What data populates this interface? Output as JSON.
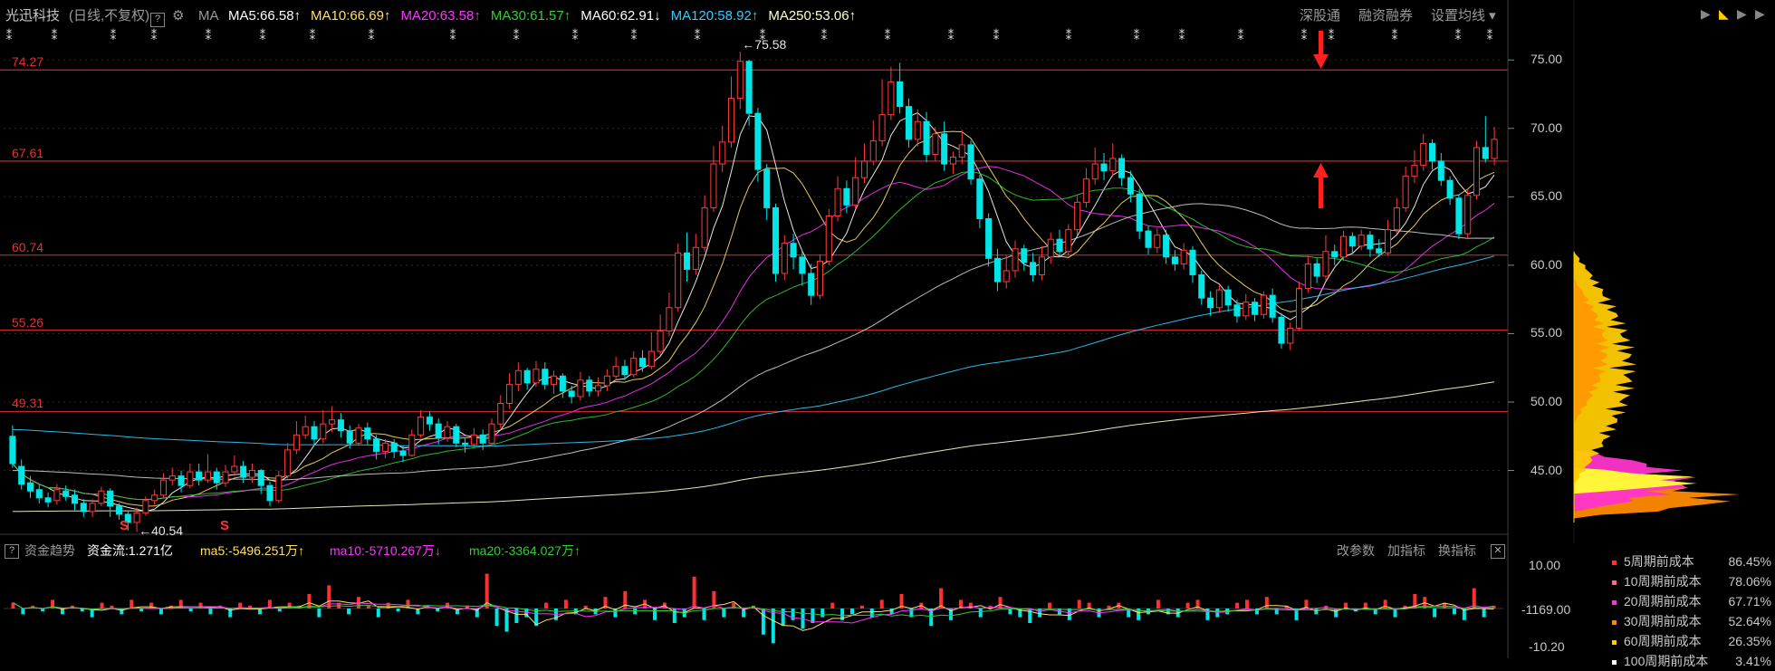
{
  "header": {
    "stock_name": "光迅科技",
    "period": "(日线,不复权)",
    "help": "?",
    "ma_label": "MA",
    "ma": [
      {
        "text": "MA5:66.58",
        "arrow": "↑",
        "color": "#ffffff"
      },
      {
        "text": "MA10:66.69",
        "arrow": "↑",
        "color": "#ffe066"
      },
      {
        "text": "MA20:63.58",
        "arrow": "↑",
        "color": "#ff33ff"
      },
      {
        "text": "MA30:61.57",
        "arrow": "↑",
        "color": "#33cc33"
      },
      {
        "text": "MA60:62.91",
        "arrow": "↓",
        "color": "#ffffff"
      },
      {
        "text": "MA120:58.92",
        "arrow": "↑",
        "color": "#33ccff"
      },
      {
        "text": "MA250:53.06",
        "arrow": "↑",
        "color": "#ffffcc"
      }
    ],
    "right_buttons": [
      "深股通",
      "融资融券",
      "设置均线"
    ]
  },
  "price_levels": [
    "74.27",
    "67.61",
    "60.74",
    "55.26",
    "49.31"
  ],
  "price_axis": [
    "75.00",
    "70.00",
    "65.00",
    "60.00",
    "55.00",
    "50.00",
    "45.00"
  ],
  "annotations": {
    "high": "←75.58",
    "low": "←40.54",
    "s_marker": "S"
  },
  "flow": {
    "title": "资金趋势",
    "help": "?",
    "main": "资金流:1.271亿",
    "ma5": "ma5:-5496.251万",
    "ma5_arrow": "↑",
    "ma10": "ma10:-5710.267万",
    "ma10_arrow": "↓",
    "ma20": "ma20:-3364.027万",
    "ma20_arrow": "↑",
    "buttons": [
      "改参数",
      "加指标",
      "换指标"
    ],
    "close": "✕",
    "axis": [
      "10.00",
      "-1169.00",
      "-10.20"
    ]
  },
  "cost_legend": [
    {
      "label": "5周期前成本",
      "pct": "86.45%",
      "color": "#ff3333"
    },
    {
      "label": "10周期前成本",
      "pct": "78.06%",
      "color": "#ff6688"
    },
    {
      "label": "20周期前成本",
      "pct": "67.71%",
      "color": "#ff33cc"
    },
    {
      "label": "30周期前成本",
      "pct": "52.64%",
      "color": "#ff8800"
    },
    {
      "label": "60周期前成本",
      "pct": "26.35%",
      "color": "#ffcc00"
    },
    {
      "label": "100周期前成本",
      "pct": "3.41%",
      "color": "#ffffff"
    }
  ],
  "chart_data": {
    "type": "candlestick",
    "y_range": [
      41,
      77
    ],
    "candles_ohlc": [
      [
        47.5,
        45.5,
        48.3,
        45.2
      ],
      [
        45.3,
        44.0,
        45.8,
        43.6
      ],
      [
        44.1,
        43.5,
        44.6,
        43.0
      ],
      [
        43.6,
        43.0,
        44.0,
        42.6
      ],
      [
        43.0,
        42.7,
        43.4,
        42.3
      ],
      [
        42.8,
        43.6,
        44.0,
        42.5
      ],
      [
        43.5,
        43.1,
        43.9,
        42.8
      ],
      [
        43.2,
        42.6,
        43.6,
        42.1
      ],
      [
        42.6,
        42.0,
        42.9,
        41.6
      ],
      [
        42.0,
        42.6,
        42.9,
        41.6
      ],
      [
        42.6,
        43.5,
        43.8,
        42.4
      ],
      [
        43.5,
        42.4,
        43.7,
        41.6
      ],
      [
        42.4,
        41.8,
        42.6,
        41.4
      ],
      [
        41.8,
        41.2,
        42.1,
        40.6
      ],
      [
        41.2,
        41.9,
        42.3,
        40.5
      ],
      [
        41.9,
        42.8,
        43.1,
        41.7
      ],
      [
        42.8,
        43.2,
        43.6,
        42.5
      ],
      [
        43.2,
        44.3,
        44.8,
        43.0
      ],
      [
        44.3,
        44.6,
        45.2,
        43.9
      ],
      [
        44.6,
        43.9,
        45.0,
        43.4
      ],
      [
        43.9,
        44.9,
        45.5,
        43.7
      ],
      [
        44.9,
        44.3,
        45.5,
        43.9
      ],
      [
        44.3,
        44.9,
        46.2,
        44.1
      ],
      [
        44.9,
        44.1,
        45.2,
        43.6
      ],
      [
        44.1,
        44.9,
        45.4,
        43.8
      ],
      [
        44.9,
        45.3,
        46.1,
        44.6
      ],
      [
        45.3,
        44.5,
        45.7,
        44.1
      ],
      [
        44.5,
        45.0,
        45.5,
        44.1
      ],
      [
        45.0,
        43.9,
        45.1,
        43.3
      ],
      [
        43.9,
        42.8,
        44.2,
        42.4
      ],
      [
        42.8,
        44.6,
        45.0,
        42.6
      ],
      [
        44.6,
        46.5,
        47.0,
        44.4
      ],
      [
        46.5,
        47.6,
        48.6,
        46.2
      ],
      [
        47.6,
        48.2,
        49.0,
        47.3
      ],
      [
        48.2,
        47.3,
        48.6,
        46.8
      ],
      [
        47.3,
        48.4,
        49.4,
        47.0
      ],
      [
        48.4,
        48.7,
        49.7,
        47.8
      ],
      [
        48.7,
        47.9,
        49.2,
        47.4
      ],
      [
        47.9,
        47.0,
        48.3,
        46.6
      ],
      [
        47.0,
        48.1,
        48.4,
        46.8
      ],
      [
        48.1,
        47.3,
        48.5,
        46.9
      ],
      [
        47.3,
        46.4,
        47.6,
        45.8
      ],
      [
        46.4,
        47.0,
        47.3,
        45.9
      ],
      [
        47.0,
        46.4,
        47.3,
        45.9
      ],
      [
        46.4,
        46.1,
        46.8,
        45.6
      ],
      [
        46.1,
        47.6,
        48.0,
        46.0
      ],
      [
        47.6,
        48.9,
        49.4,
        47.4
      ],
      [
        48.9,
        48.4,
        49.3,
        47.9
      ],
      [
        48.4,
        47.4,
        48.8,
        46.9
      ],
      [
        47.4,
        48.2,
        48.6,
        47.1
      ],
      [
        48.2,
        47.0,
        48.4,
        46.7
      ],
      [
        47.0,
        46.9,
        47.4,
        46.3
      ],
      [
        46.9,
        47.6,
        48.1,
        46.6
      ],
      [
        47.6,
        47.0,
        48.0,
        46.5
      ],
      [
        47.0,
        48.4,
        48.8,
        46.8
      ],
      [
        48.4,
        49.9,
        50.5,
        48.1
      ],
      [
        49.9,
        51.3,
        52.1,
        49.5
      ],
      [
        51.3,
        52.3,
        52.9,
        50.8
      ],
      [
        52.3,
        51.4,
        52.5,
        50.9
      ],
      [
        51.4,
        52.4,
        53.0,
        51.1
      ],
      [
        52.4,
        51.3,
        52.9,
        50.9
      ],
      [
        51.3,
        51.9,
        52.3,
        50.6
      ],
      [
        51.9,
        50.8,
        52.1,
        50.3
      ],
      [
        50.8,
        50.4,
        51.2,
        49.9
      ],
      [
        50.4,
        51.6,
        52.2,
        50.1
      ],
      [
        51.6,
        50.8,
        51.9,
        50.4
      ],
      [
        50.8,
        51.2,
        51.8,
        50.4
      ],
      [
        51.2,
        51.9,
        52.4,
        50.8
      ],
      [
        51.9,
        52.6,
        53.3,
        51.6
      ],
      [
        52.6,
        52.0,
        53.1,
        51.6
      ],
      [
        52.0,
        53.2,
        53.7,
        51.8
      ],
      [
        53.2,
        52.6,
        53.8,
        52.2
      ],
      [
        52.6,
        53.7,
        55.1,
        52.4
      ],
      [
        53.7,
        55.2,
        56.4,
        53.4
      ],
      [
        55.2,
        56.9,
        58.0,
        54.8
      ],
      [
        56.9,
        60.9,
        61.6,
        56.6
      ],
      [
        60.9,
        59.7,
        62.4,
        58.8
      ],
      [
        59.7,
        61.3,
        62.3,
        59.3
      ],
      [
        61.3,
        64.2,
        65.1,
        61.0
      ],
      [
        64.2,
        67.4,
        68.7,
        63.9
      ],
      [
        67.4,
        69.0,
        70.2,
        66.8
      ],
      [
        69.0,
        72.2,
        73.8,
        68.6
      ],
      [
        72.2,
        74.9,
        75.6,
        71.4
      ],
      [
        74.9,
        71.1,
        75.0,
        70.2
      ],
      [
        71.1,
        67.0,
        71.5,
        66.1
      ],
      [
        67.0,
        64.2,
        67.4,
        63.3
      ],
      [
        64.2,
        59.4,
        64.5,
        58.8
      ],
      [
        59.4,
        61.6,
        62.2,
        58.9
      ],
      [
        61.6,
        60.6,
        62.3,
        59.7
      ],
      [
        60.6,
        59.4,
        61.0,
        58.5
      ],
      [
        59.4,
        57.8,
        60.1,
        57.1
      ],
      [
        57.8,
        60.3,
        60.8,
        57.5
      ],
      [
        60.3,
        63.6,
        64.1,
        60.0
      ],
      [
        63.6,
        65.6,
        66.5,
        63.2
      ],
      [
        65.6,
        64.4,
        66.2,
        63.8
      ],
      [
        64.4,
        66.4,
        67.9,
        64.1
      ],
      [
        66.4,
        67.6,
        68.9,
        66.0
      ],
      [
        67.6,
        69.1,
        70.6,
        67.3
      ],
      [
        69.1,
        71.0,
        73.6,
        68.7
      ],
      [
        71.0,
        73.4,
        74.5,
        70.6
      ],
      [
        73.4,
        71.6,
        74.8,
        71.1
      ],
      [
        71.6,
        69.2,
        72.2,
        68.6
      ],
      [
        69.2,
        70.5,
        71.4,
        68.7
      ],
      [
        70.5,
        68.1,
        71.2,
        67.5
      ],
      [
        68.1,
        69.6,
        70.1,
        67.6
      ],
      [
        69.6,
        67.4,
        70.5,
        66.9
      ],
      [
        67.4,
        67.9,
        68.3,
        66.7
      ],
      [
        67.9,
        68.8,
        69.9,
        67.4
      ],
      [
        68.8,
        66.3,
        69.1,
        65.9
      ],
      [
        66.3,
        63.4,
        66.6,
        62.7
      ],
      [
        63.4,
        60.5,
        63.8,
        59.9
      ],
      [
        60.5,
        58.8,
        61.2,
        58.1
      ],
      [
        58.8,
        59.6,
        60.7,
        58.3
      ],
      [
        59.6,
        61.2,
        61.8,
        59.1
      ],
      [
        61.2,
        60.2,
        61.5,
        59.6
      ],
      [
        60.2,
        59.3,
        60.9,
        58.8
      ],
      [
        59.3,
        60.6,
        61.4,
        58.9
      ],
      [
        60.6,
        61.9,
        62.4,
        60.1
      ],
      [
        61.9,
        61.0,
        62.6,
        60.6
      ],
      [
        61.0,
        62.6,
        63.0,
        60.7
      ],
      [
        62.6,
        64.6,
        65.1,
        62.2
      ],
      [
        64.6,
        66.3,
        67.1,
        64.2
      ],
      [
        66.3,
        67.4,
        68.6,
        65.9
      ],
      [
        67.4,
        66.9,
        68.2,
        66.2
      ],
      [
        66.9,
        67.8,
        68.9,
        66.5
      ],
      [
        67.8,
        66.4,
        68.1,
        65.8
      ],
      [
        66.4,
        65.2,
        66.9,
        64.6
      ],
      [
        65.2,
        62.5,
        65.6,
        61.9
      ],
      [
        62.5,
        61.3,
        62.9,
        60.8
      ],
      [
        61.3,
        62.2,
        62.7,
        60.9
      ],
      [
        62.2,
        60.6,
        62.6,
        60.1
      ],
      [
        60.6,
        60.1,
        61.1,
        59.6
      ],
      [
        60.1,
        61.1,
        61.6,
        59.7
      ],
      [
        61.1,
        59.3,
        61.4,
        58.7
      ],
      [
        59.3,
        57.6,
        59.6,
        57.1
      ],
      [
        57.6,
        56.9,
        58.1,
        56.3
      ],
      [
        56.9,
        58.2,
        58.6,
        56.5
      ],
      [
        58.2,
        57.1,
        58.5,
        56.6
      ],
      [
        57.1,
        56.3,
        57.5,
        55.8
      ],
      [
        56.3,
        57.3,
        57.9,
        56.0
      ],
      [
        57.3,
        56.4,
        57.6,
        55.9
      ],
      [
        56.4,
        57.8,
        58.1,
        56.1
      ],
      [
        57.8,
        56.2,
        58.3,
        55.8
      ],
      [
        56.2,
        54.3,
        56.5,
        53.9
      ],
      [
        54.3,
        55.4,
        55.8,
        53.8
      ],
      [
        55.4,
        58.3,
        58.8,
        55.2
      ],
      [
        58.3,
        60.1,
        60.7,
        58.0
      ],
      [
        60.1,
        59.2,
        60.5,
        58.7
      ],
      [
        59.2,
        61.0,
        62.2,
        58.9
      ],
      [
        61.0,
        60.6,
        61.5,
        60.0
      ],
      [
        60.6,
        62.1,
        62.5,
        60.3
      ],
      [
        62.1,
        61.4,
        62.4,
        60.8
      ],
      [
        61.4,
        62.2,
        62.6,
        61.1
      ],
      [
        62.2,
        61.2,
        62.5,
        60.6
      ],
      [
        61.2,
        60.9,
        61.9,
        60.6
      ],
      [
        60.9,
        62.6,
        63.3,
        60.7
      ],
      [
        62.6,
        64.2,
        64.9,
        62.3
      ],
      [
        64.2,
        66.5,
        67.2,
        63.9
      ],
      [
        66.5,
        67.3,
        68.4,
        66.0
      ],
      [
        67.3,
        68.9,
        69.6,
        66.9
      ],
      [
        68.9,
        67.6,
        69.2,
        67.0
      ],
      [
        67.6,
        66.2,
        68.2,
        65.8
      ],
      [
        66.2,
        64.9,
        66.5,
        64.4
      ],
      [
        64.9,
        62.3,
        65.2,
        61.9
      ],
      [
        62.3,
        65.1,
        65.6,
        61.9
      ],
      [
        65.1,
        68.6,
        69.1,
        64.8
      ],
      [
        68.6,
        67.8,
        70.9,
        67.5
      ],
      [
        67.8,
        69.2,
        70.1,
        67.3
      ]
    ],
    "flow_values": [
      2,
      -2,
      1,
      -1,
      3,
      -2,
      1,
      -1,
      -3,
      2,
      1,
      -2,
      3,
      -1,
      2,
      -2,
      1,
      3,
      -1,
      2,
      -2,
      1,
      -3,
      2,
      1,
      -2,
      3,
      -1,
      2,
      1,
      5,
      -3,
      8,
      2,
      -2,
      4,
      1,
      -3,
      2,
      -1,
      3,
      -2,
      1,
      -1,
      2,
      -2,
      1,
      -3,
      12,
      -6,
      -8,
      -5,
      -3,
      -6,
      2,
      -4,
      3,
      -2,
      1,
      -2,
      4,
      -3,
      6,
      -2,
      3,
      -4,
      2,
      -5,
      -3,
      11,
      -4,
      6,
      -3,
      2,
      -3,
      1,
      -9,
      -12,
      -6,
      -4,
      -7,
      -5,
      -3,
      2,
      -4,
      -2,
      1,
      -3,
      3,
      -2,
      5,
      -3,
      2,
      -6,
      7,
      -4,
      3,
      2,
      -3,
      1,
      4,
      -2,
      -3,
      -5,
      -3,
      2,
      -2,
      -4,
      3,
      2,
      -3,
      1,
      2,
      -3,
      -4,
      -2,
      3,
      -2,
      -3,
      2,
      3,
      -4,
      -3,
      -2,
      2,
      3,
      -2,
      4,
      -2,
      1,
      -4,
      3,
      -2,
      1,
      -3,
      2,
      -1,
      2,
      -2,
      3,
      -3,
      1,
      5,
      4,
      -3,
      2,
      -2,
      -4,
      7,
      -3,
      1
    ]
  }
}
